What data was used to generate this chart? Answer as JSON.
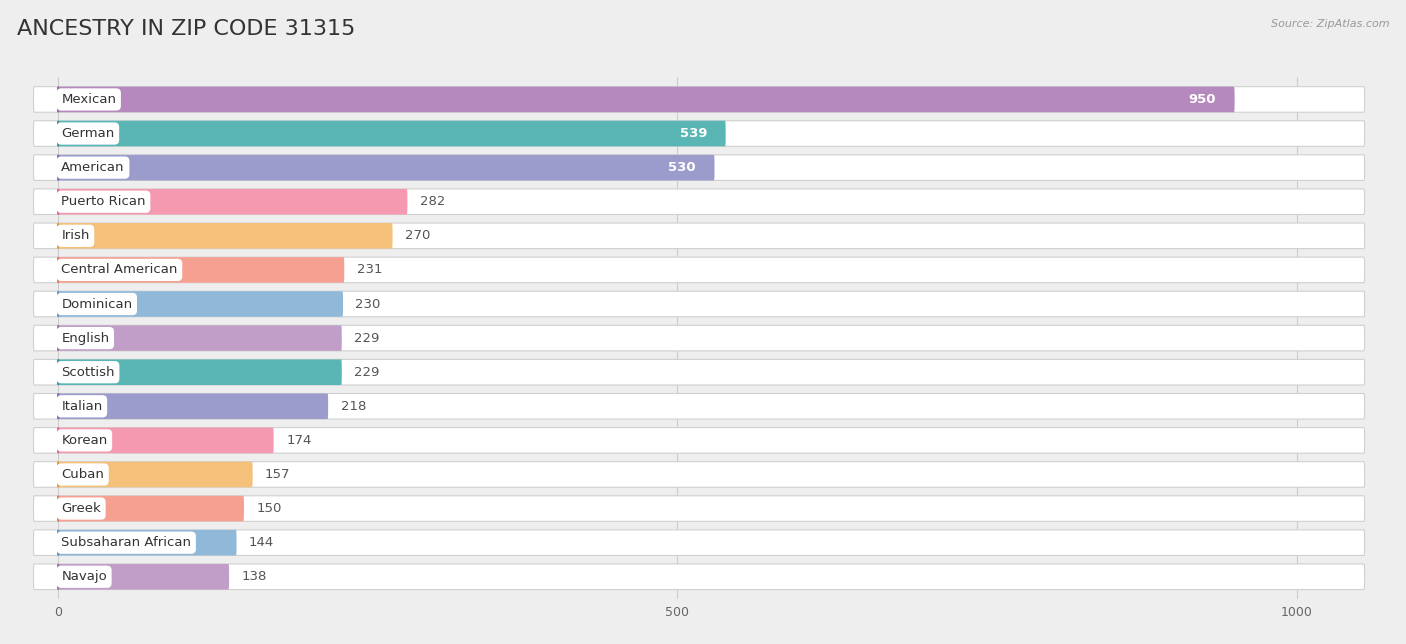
{
  "title": "ANCESTRY IN ZIP CODE 31315",
  "source": "Source: ZipAtlas.com",
  "categories": [
    "Mexican",
    "German",
    "American",
    "Puerto Rican",
    "Irish",
    "Central American",
    "Dominican",
    "English",
    "Scottish",
    "Italian",
    "Korean",
    "Cuban",
    "Greek",
    "Subsaharan African",
    "Navajo"
  ],
  "values": [
    950,
    539,
    530,
    282,
    270,
    231,
    230,
    229,
    229,
    218,
    174,
    157,
    150,
    144,
    138
  ],
  "bar_colors": [
    "#b589bd",
    "#5ab5b5",
    "#9b9bcc",
    "#f599b0",
    "#f5c07a",
    "#f5a090",
    "#90b8d8",
    "#c09ec8",
    "#5ab5b5",
    "#9b9bcc",
    "#f599b0",
    "#f5c07a",
    "#f5a090",
    "#90b8d8",
    "#c09ec8"
  ],
  "icon_colors": [
    "#9b68aa",
    "#389898",
    "#7070b8",
    "#e06888",
    "#e09838",
    "#e07868",
    "#6890c0",
    "#9870a8",
    "#389898",
    "#7070b8",
    "#e06888",
    "#e09838",
    "#e07868",
    "#6890c0",
    "#9870a8"
  ],
  "background_color": "#eeeeee",
  "bar_bg_color": "#ffffff",
  "xlim_data": [
    0,
    1000
  ],
  "xticks": [
    0,
    500,
    1000
  ],
  "title_fontsize": 16,
  "label_fontsize": 9.5,
  "value_fontsize": 9.5
}
